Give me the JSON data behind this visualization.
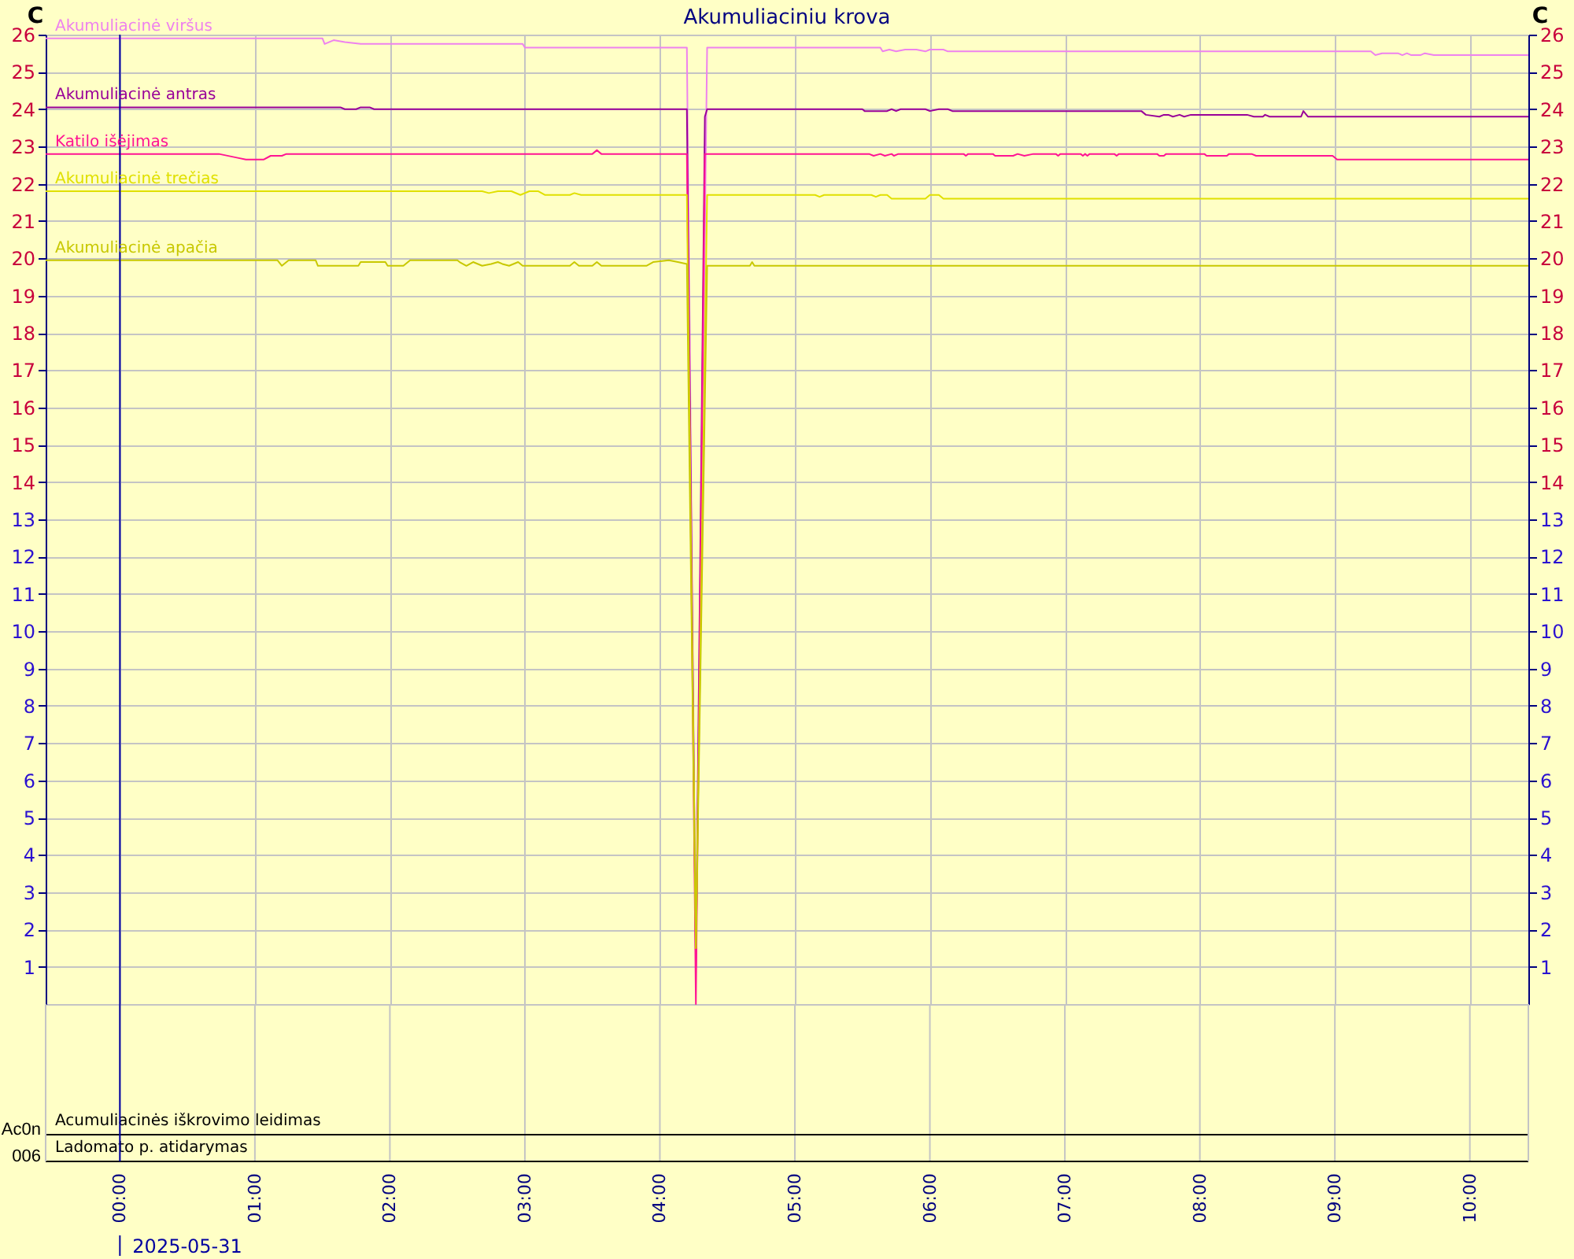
{
  "chart_data": {
    "type": "line",
    "title": "Akumuliaciniu krova",
    "ylabel": "C",
    "y2label": "C",
    "grid": true,
    "xlim": [
      "2025-05-30T23:27",
      "2025-05-31T10:26"
    ],
    "xticks": [
      {
        "value": "2025-05-31T00:00",
        "label": "00:00"
      },
      {
        "value": "2025-05-31T01:00",
        "label": "01:00"
      },
      {
        "value": "2025-05-31T02:00",
        "label": "02:00"
      },
      {
        "value": "2025-05-31T03:00",
        "label": "03:00"
      },
      {
        "value": "2025-05-31T04:00",
        "label": "04:00"
      },
      {
        "value": "2025-05-31T05:00",
        "label": "05:00"
      },
      {
        "value": "2025-05-31T06:00",
        "label": "06:00"
      },
      {
        "value": "2025-05-31T07:00",
        "label": "07:00"
      },
      {
        "value": "2025-05-31T08:00",
        "label": "08:00"
      },
      {
        "value": "2025-05-31T09:00",
        "label": "09:00"
      },
      {
        "value": "2025-05-31T10:00",
        "label": "10:00"
      }
    ],
    "ylim": [
      0,
      26
    ],
    "yticks": [
      1,
      2,
      3,
      4,
      5,
      6,
      7,
      8,
      9,
      10,
      11,
      12,
      13,
      14,
      15,
      16,
      17,
      18,
      19,
      20,
      21,
      22,
      23,
      24,
      25,
      26
    ],
    "y2lim": [
      0,
      26
    ],
    "y2ticks": [
      1,
      2,
      3,
      4,
      5,
      6,
      7,
      8,
      9,
      10,
      11,
      12,
      13,
      14,
      15,
      16,
      17,
      18,
      19,
      20,
      21,
      22,
      23,
      24,
      25,
      26
    ],
    "ref_lines": [
      {
        "axis": "x",
        "value": "2025-05-31T00:00",
        "label": "2025-05-31",
        "color": "#0000a0"
      }
    ],
    "annotations": [
      "Acumuliacinės iškrovimo leidimas",
      "Ladomato p. atidarymas",
      "Ac0n",
      "006"
    ],
    "series": [
      {
        "name": "Akumuliacinė viršus",
        "color": "#ee82ee",
        "x": [
          "2025-05-30T23:27",
          "2025-05-31T01:30",
          "2025-05-31T01:31",
          "2025-05-31T01:35",
          "2025-05-31T01:40",
          "2025-05-31T01:47",
          "2025-05-31T02:59",
          "2025-05-31T03:00",
          "2025-05-31T04:12",
          "2025-05-31T04:16",
          "2025-05-31T04:21",
          "2025-05-31T05:38",
          "2025-05-31T05:39",
          "2025-05-31T05:42",
          "2025-05-31T05:45",
          "2025-05-31T05:49",
          "2025-05-31T05:54",
          "2025-05-31T05:58",
          "2025-05-31T06:00",
          "2025-05-31T06:06",
          "2025-05-31T06:08",
          "2025-05-31T09:16",
          "2025-05-31T09:18",
          "2025-05-31T09:21",
          "2025-05-31T09:28",
          "2025-05-31T09:30",
          "2025-05-31T09:32",
          "2025-05-31T09:34",
          "2025-05-31T09:38",
          "2025-05-31T09:40",
          "2025-05-31T09:44",
          "2025-05-31T10:26"
        ],
        "values": [
          25.9,
          25.9,
          25.75,
          25.85,
          25.8,
          25.75,
          25.75,
          25.65,
          25.65,
          1,
          25.65,
          25.65,
          25.55,
          25.6,
          25.55,
          25.6,
          25.6,
          25.55,
          25.6,
          25.6,
          25.55,
          25.55,
          25.45,
          25.5,
          25.5,
          25.45,
          25.5,
          25.45,
          25.45,
          25.5,
          25.45,
          25.45
        ]
      },
      {
        "name": "Akumuliacinė antras",
        "color": "#990099",
        "x": [
          "2025-05-30T23:27",
          "2025-05-31T01:38",
          "2025-05-31T01:40",
          "2025-05-31T01:45",
          "2025-05-31T01:47",
          "2025-05-31T01:51",
          "2025-05-31T01:53",
          "2025-05-31T04:12",
          "2025-05-31T04:16",
          "2025-05-31T04:20",
          "2025-05-31T04:21",
          "2025-05-31T05:30",
          "2025-05-31T05:31",
          "2025-05-31T05:41",
          "2025-05-31T05:43",
          "2025-05-31T05:45",
          "2025-05-31T05:47",
          "2025-05-31T05:58",
          "2025-05-31T06:00",
          "2025-05-31T06:04",
          "2025-05-31T06:08",
          "2025-05-31T06:10",
          "2025-05-31T07:34",
          "2025-05-31T07:36",
          "2025-05-31T07:42",
          "2025-05-31T07:44",
          "2025-05-31T07:46",
          "2025-05-31T07:48",
          "2025-05-31T07:51",
          "2025-05-31T07:53",
          "2025-05-31T07:56",
          "2025-05-31T08:21",
          "2025-05-31T08:24",
          "2025-05-31T08:28",
          "2025-05-31T08:29",
          "2025-05-31T08:31",
          "2025-05-31T08:45",
          "2025-05-31T08:46",
          "2025-05-31T08:48",
          "2025-05-31T10:26"
        ],
        "values": [
          24.05,
          24.05,
          24.0,
          24.0,
          24.05,
          24.05,
          24.0,
          24.0,
          1,
          23.8,
          24.0,
          24.0,
          23.95,
          23.95,
          24.0,
          23.95,
          24.0,
          24.0,
          23.95,
          24.0,
          24.0,
          23.95,
          23.95,
          23.85,
          23.8,
          23.85,
          23.85,
          23.8,
          23.85,
          23.8,
          23.85,
          23.85,
          23.8,
          23.8,
          23.85,
          23.8,
          23.8,
          23.95,
          23.8,
          23.8
        ]
      },
      {
        "name": "Katilo išėjimas",
        "color": "#ff1493",
        "x": [
          "2025-05-30T23:27",
          "2025-05-31T00:44",
          "2025-05-31T00:52",
          "2025-05-31T00:56",
          "2025-05-31T01:04",
          "2025-05-31T01:07",
          "2025-05-31T01:12",
          "2025-05-31T01:14",
          "2025-05-31T03:30",
          "2025-05-31T03:32",
          "2025-05-31T03:34",
          "2025-05-31T04:12",
          "2025-05-31T04:16",
          "2025-05-31T04:20",
          "2025-05-31T05:33",
          "2025-05-31T05:35",
          "2025-05-31T05:38",
          "2025-05-31T05:40",
          "2025-05-31T05:43",
          "2025-05-31T05:44",
          "2025-05-31T05:46",
          "2025-05-31T06:15",
          "2025-05-31T06:16",
          "2025-05-31T06:17",
          "2025-05-31T06:28",
          "2025-05-31T06:29",
          "2025-05-31T06:37",
          "2025-05-31T06:39",
          "2025-05-31T06:42",
          "2025-05-31T06:46",
          "2025-05-31T06:56",
          "2025-05-31T06:57",
          "2025-05-31T06:58",
          "2025-05-31T07:07",
          "2025-05-31T07:08",
          "2025-05-31T07:09",
          "2025-05-31T07:10",
          "2025-05-31T07:11",
          "2025-05-31T07:22",
          "2025-05-31T07:23",
          "2025-05-31T07:24",
          "2025-05-31T07:41",
          "2025-05-31T07:42",
          "2025-05-31T07:44",
          "2025-05-31T07:45",
          "2025-05-31T08:02",
          "2025-05-31T08:03",
          "2025-05-31T08:12",
          "2025-05-31T08:13",
          "2025-05-31T08:23",
          "2025-05-31T08:25",
          "2025-05-31T08:59",
          "2025-05-31T09:01",
          "2025-05-31T10:26"
        ],
        "values": [
          22.8,
          22.8,
          22.7,
          22.65,
          22.65,
          22.75,
          22.75,
          22.8,
          22.8,
          22.9,
          22.8,
          22.8,
          0,
          22.8,
          22.8,
          22.75,
          22.8,
          22.75,
          22.8,
          22.75,
          22.8,
          22.8,
          22.75,
          22.8,
          22.8,
          22.75,
          22.75,
          22.8,
          22.75,
          22.8,
          22.8,
          22.75,
          22.8,
          22.8,
          22.75,
          22.8,
          22.75,
          22.8,
          22.8,
          22.75,
          22.8,
          22.8,
          22.75,
          22.75,
          22.8,
          22.8,
          22.75,
          22.75,
          22.8,
          22.8,
          22.75,
          22.75,
          22.65,
          22.65
        ]
      },
      {
        "name": "Akumuliacinė trečias",
        "color": "#e0e000",
        "x": [
          "2025-05-30T23:27",
          "2025-05-31T02:41",
          "2025-05-31T02:44",
          "2025-05-31T02:48",
          "2025-05-31T02:54",
          "2025-05-31T02:58",
          "2025-05-31T03:02",
          "2025-05-31T03:06",
          "2025-05-31T03:09",
          "2025-05-31T03:20",
          "2025-05-31T03:22",
          "2025-05-31T03:25",
          "2025-05-31T04:12",
          "2025-05-31T04:16",
          "2025-05-31T04:21",
          "2025-05-31T05:09",
          "2025-05-31T05:11",
          "2025-05-31T05:13",
          "2025-05-31T05:34",
          "2025-05-31T05:36",
          "2025-05-31T05:38",
          "2025-05-31T05:41",
          "2025-05-31T05:43",
          "2025-05-31T05:58",
          "2025-05-31T06:00",
          "2025-05-31T06:04",
          "2025-05-31T06:06",
          "2025-05-31T10:26"
        ],
        "values": [
          21.8,
          21.8,
          21.75,
          21.8,
          21.8,
          21.7,
          21.8,
          21.8,
          21.7,
          21.7,
          21.75,
          21.7,
          21.7,
          1.5,
          21.7,
          21.7,
          21.65,
          21.7,
          21.7,
          21.65,
          21.7,
          21.7,
          21.6,
          21.6,
          21.7,
          21.7,
          21.6,
          21.6
        ]
      },
      {
        "name": "Akumuliacinė apačia",
        "color": "#c8c800",
        "x": [
          "2025-05-30T23:27",
          "2025-05-31T01:10",
          "2025-05-31T01:12",
          "2025-05-31T01:15",
          "2025-05-31T01:27",
          "2025-05-31T01:28",
          "2025-05-31T01:46",
          "2025-05-31T01:47",
          "2025-05-31T01:58",
          "2025-05-31T01:59",
          "2025-05-31T02:06",
          "2025-05-31T02:09",
          "2025-05-31T02:30",
          "2025-05-31T02:31",
          "2025-05-31T02:34",
          "2025-05-31T02:37",
          "2025-05-31T02:41",
          "2025-05-31T02:45",
          "2025-05-31T02:48",
          "2025-05-31T02:50",
          "2025-05-31T02:53",
          "2025-05-31T02:57",
          "2025-05-31T02:59",
          "2025-05-31T03:20",
          "2025-05-31T03:22",
          "2025-05-31T03:24",
          "2025-05-31T03:30",
          "2025-05-31T03:32",
          "2025-05-31T03:34",
          "2025-05-31T03:54",
          "2025-05-31T03:57",
          "2025-05-31T04:04",
          "2025-05-31T04:08",
          "2025-05-31T04:12",
          "2025-05-31T04:16",
          "2025-05-31T04:21",
          "2025-05-31T04:40",
          "2025-05-31T04:41",
          "2025-05-31T04:42",
          "2025-05-31T10:26"
        ],
        "values": [
          19.95,
          19.95,
          19.8,
          19.95,
          19.95,
          19.8,
          19.8,
          19.9,
          19.9,
          19.8,
          19.8,
          19.95,
          19.95,
          19.9,
          19.8,
          19.9,
          19.8,
          19.85,
          19.9,
          19.85,
          19.8,
          19.9,
          19.8,
          19.8,
          19.9,
          19.8,
          19.8,
          19.9,
          19.8,
          19.8,
          19.9,
          19.95,
          19.9,
          19.85,
          1.5,
          19.8,
          19.8,
          19.9,
          19.8,
          19.8
        ]
      }
    ]
  }
}
